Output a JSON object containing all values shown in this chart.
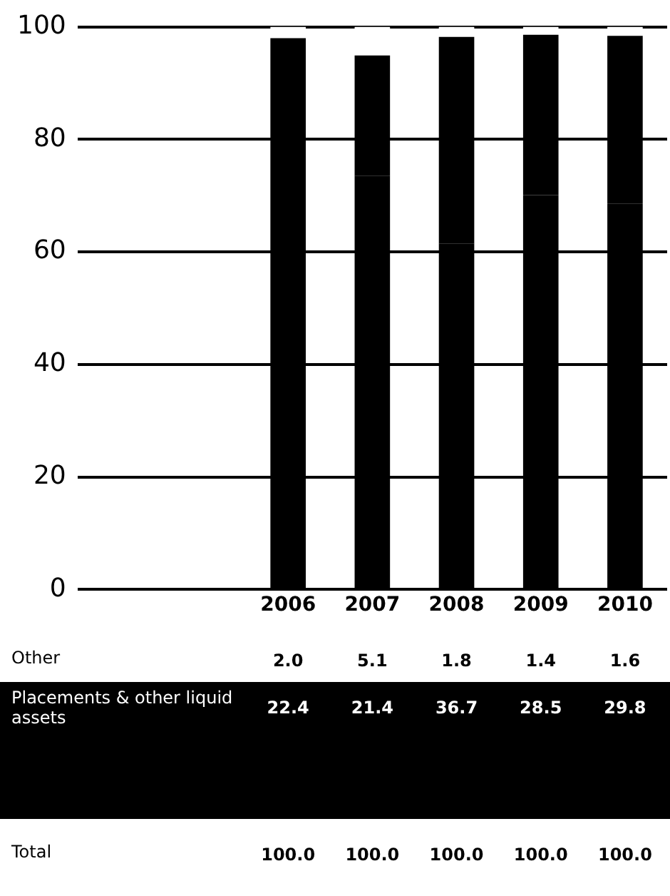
{
  "chart_data": {
    "type": "bar",
    "stacked": true,
    "categories": [
      null,
      null,
      "2006",
      "2007",
      "2008",
      "2009",
      "2010"
    ],
    "series": [
      {
        "color": "#000000",
        "values": [
          null,
          null,
          75.6,
          73.5,
          61.5,
          70.1,
          68.6
        ]
      },
      {
        "name": "Placements & other liquid assets",
        "color": "#000000",
        "values": [
          null,
          null,
          22.4,
          21.4,
          36.7,
          28.5,
          29.8
        ],
        "value_labels": [
          null,
          null,
          "22.4",
          "21.4",
          "36.7",
          "28.5",
          "29.8"
        ]
      },
      {
        "name": "Other",
        "color": "#ffffff",
        "values": [
          null,
          null,
          2.0,
          5.1,
          1.8,
          1.4,
          1.6
        ],
        "value_labels": [
          null,
          null,
          "2.0",
          "5.1",
          "1.8",
          "1.4",
          "1.6"
        ]
      }
    ],
    "annotations": [
      "Total",
      "100.0",
      "100.0",
      "100.0",
      "100.0",
      "100.0"
    ],
    "ylim": [
      0,
      100
    ],
    "yticks": [
      0,
      20,
      40,
      60,
      80,
      100
    ],
    "grid": "y",
    "legend": false
  }
}
